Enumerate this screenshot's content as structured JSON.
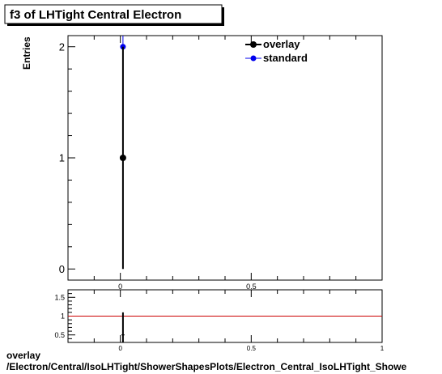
{
  "chart_data": [
    {
      "type": "scatter",
      "title": "f3 of LHTight Central  Electron",
      "ylabel": "Entries",
      "xlabel": "",
      "xlim": [
        -0.2,
        1.0
      ],
      "ylim": [
        -0.1,
        2.1
      ],
      "x_ticks": [
        {
          "value": 0,
          "label": "0"
        },
        {
          "value": 0.5,
          "label": "0.5"
        }
      ],
      "y_ticks": [
        {
          "value": 0,
          "label": "0"
        },
        {
          "value": 1,
          "label": "1"
        },
        {
          "value": 2,
          "label": "2"
        }
      ],
      "legend_position": "top-right",
      "series": [
        {
          "name": "overlay",
          "color": "#000000",
          "x": [
            0.01
          ],
          "y": [
            1
          ],
          "yerr_low": [
            1
          ],
          "yerr_high": [
            1
          ]
        },
        {
          "name": "standard",
          "color": "#0000ee",
          "x": [
            0.01
          ],
          "y": [
            2
          ],
          "yerr_low": [
            1.41
          ],
          "yerr_high": [
            1.41
          ]
        }
      ]
    },
    {
      "type": "scatter",
      "title": "",
      "xlabel": "",
      "ylabel": "",
      "xlim": [
        -0.2,
        1.0
      ],
      "ylim": [
        0.3,
        1.7
      ],
      "x_ticks": [
        {
          "value": 0,
          "label": "0"
        },
        {
          "value": 0.5,
          "label": "0.5"
        },
        {
          "value": 1,
          "label": "1"
        }
      ],
      "y_ticks": [
        {
          "value": 0.5,
          "label": "0.5"
        },
        {
          "value": 1,
          "label": "1"
        },
        {
          "value": 1.5,
          "label": "1.5"
        }
      ],
      "reference_line": {
        "y": 1,
        "color": "#cc0000"
      },
      "series": [
        {
          "name": "",
          "color": "#000000",
          "x": [
            0.01
          ],
          "y": [
            0.5
          ],
          "yerr_low": [
            0.6
          ],
          "yerr_high": [
            0.6
          ]
        }
      ]
    }
  ],
  "footer": {
    "line1": "overlay",
    "line2": "/Electron/Central/IsoLHTight/ShowerShapesPlots/Electron_Central_IsoLHTight_Showe"
  }
}
